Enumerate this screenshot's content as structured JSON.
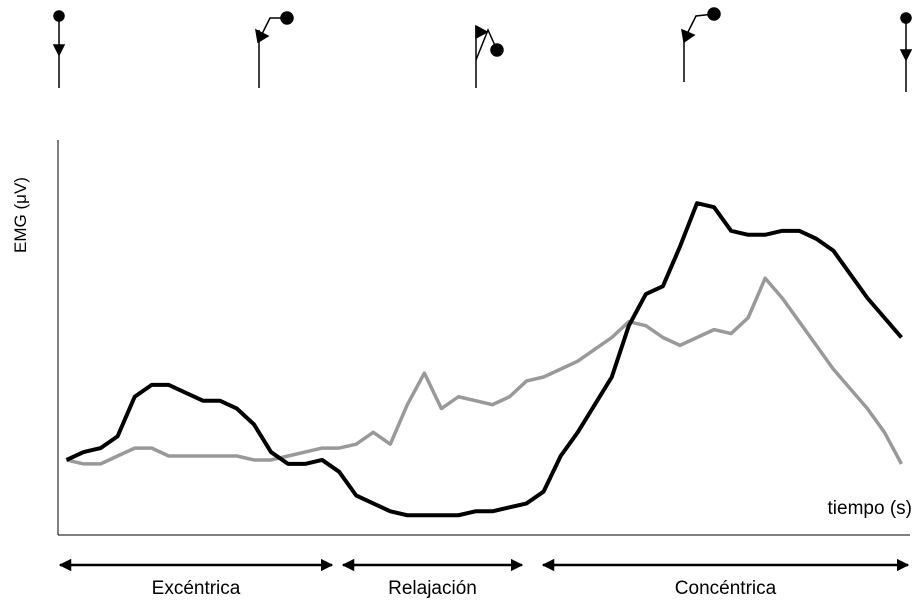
{
  "chart_data": {
    "type": "line",
    "y_label": "EMG (μV)",
    "x_label": "tiempo (s)",
    "xlim": [
      0,
      100
    ],
    "ylim": [
      0,
      100
    ],
    "x": [
      1,
      3,
      5,
      7,
      9,
      11,
      13,
      15,
      17,
      19,
      21,
      23,
      25,
      27,
      29,
      31,
      33,
      35,
      37,
      39,
      41,
      43,
      45,
      47,
      49,
      51,
      53,
      55,
      57,
      59,
      61,
      63,
      65,
      67,
      69,
      71,
      73,
      75,
      77,
      79,
      81,
      83,
      85,
      87,
      89,
      91,
      93,
      95,
      97,
      99
    ],
    "series": [
      {
        "color": "#000000",
        "values": [
          19,
          21,
          22,
          25,
          35,
          38,
          38,
          36,
          34,
          34,
          32,
          28,
          21,
          18,
          18,
          19,
          16,
          10,
          8,
          6,
          5,
          5,
          5,
          5,
          6,
          6,
          7,
          8,
          11,
          20,
          26,
          33,
          40,
          53,
          61,
          63,
          73,
          84,
          83,
          77,
          76,
          76,
          77,
          77,
          75,
          72,
          66,
          60,
          55,
          50
        ]
      },
      {
        "color": "#999999",
        "values": [
          19,
          18,
          18,
          20,
          22,
          22,
          20,
          20,
          20,
          20,
          20,
          19,
          19,
          20,
          21,
          22,
          22,
          23,
          26,
          23,
          33,
          41,
          32,
          35,
          34,
          33,
          35,
          39,
          40,
          42,
          44,
          47,
          50,
          54,
          53,
          50,
          48,
          50,
          52,
          51,
          55,
          65,
          60,
          54,
          48,
          42,
          37,
          32,
          26,
          18
        ]
      }
    ],
    "phases": [
      "Excéntrica",
      "Relajación",
      "Concéntrica"
    ]
  }
}
